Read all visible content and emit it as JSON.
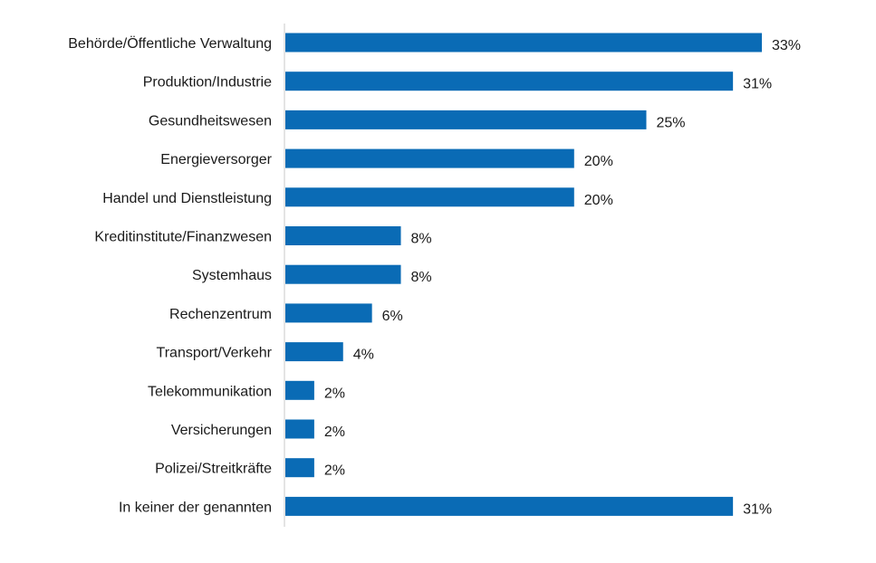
{
  "chart_data": {
    "type": "bar",
    "orientation": "horizontal",
    "title": "",
    "xlabel": "",
    "ylabel": "",
    "value_suffix": "%",
    "xlim": [
      0,
      33
    ],
    "grid": false,
    "bar_color": "#0A6BB5",
    "categories": [
      "Behörde/Öffentliche Verwaltung",
      "Produktion/Industrie",
      "Gesundheitswesen",
      "Energieversorger",
      "Handel und Dienstleistung",
      "Kreditinstitute/Finanzwesen",
      "Systemhaus",
      "Rechenzentrum",
      "Transport/Verkehr",
      "Telekommunikation",
      "Versicherungen",
      "Polizei/Streitkräfte",
      "In keiner der genannten"
    ],
    "values": [
      33,
      31,
      25,
      20,
      20,
      8,
      8,
      6,
      4,
      2,
      2,
      2,
      31
    ],
    "data_labels": [
      "33%",
      "31%",
      "25%",
      "20%",
      "20%",
      "8%",
      "8%",
      "6%",
      "4%",
      "2%",
      "2%",
      "2%",
      "31%"
    ]
  }
}
